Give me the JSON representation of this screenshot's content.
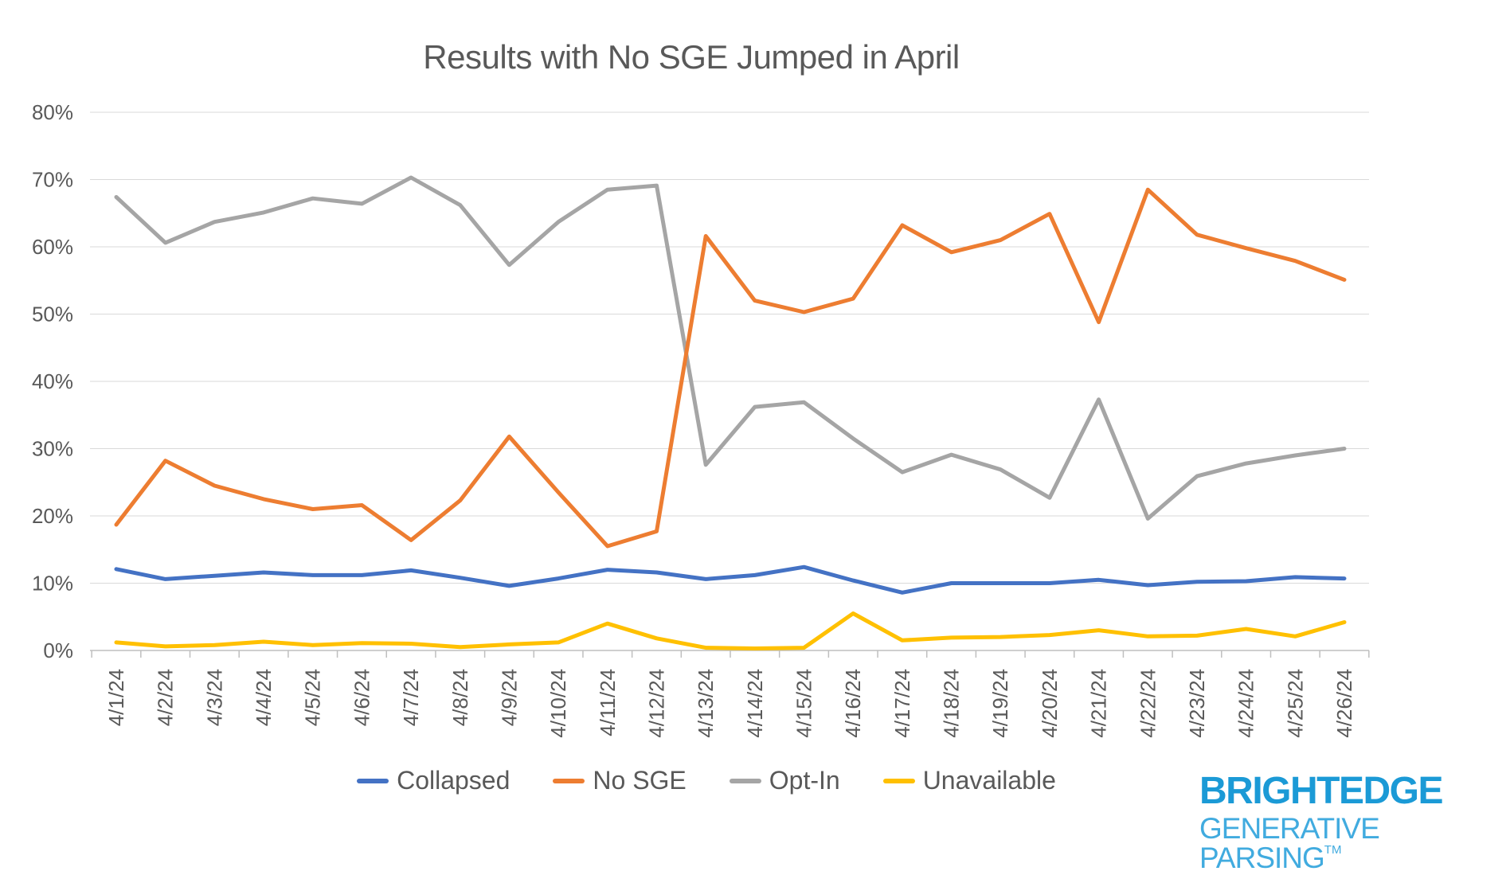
{
  "title": "Results with No SGE Jumped in April",
  "chart_data": {
    "type": "line",
    "title": "Results with No SGE Jumped in April",
    "xlabel": "",
    "ylabel": "",
    "ylim": [
      0,
      80
    ],
    "y_tick_step": 10,
    "y_tick_labels": [
      "0%",
      "10%",
      "20%",
      "30%",
      "40%",
      "50%",
      "60%",
      "70%",
      "80%"
    ],
    "grid": true,
    "legend_position": "bottom",
    "categories": [
      "4/1/24",
      "4/2/24",
      "4/3/24",
      "4/4/24",
      "4/5/24",
      "4/6/24",
      "4/7/24",
      "4/8/24",
      "4/9/24",
      "4/10/24",
      "4/11/24",
      "4/12/24",
      "4/13/24",
      "4/14/24",
      "4/15/24",
      "4/16/24",
      "4/17/24",
      "4/18/24",
      "4/19/24",
      "4/20/24",
      "4/21/24",
      "4/22/24",
      "4/23/24",
      "4/24/24",
      "4/25/24",
      "4/26/24"
    ],
    "series": [
      {
        "name": "Collapsed",
        "color": "#4472C4",
        "values": [
          12.1,
          10.6,
          11.1,
          11.6,
          11.2,
          11.2,
          11.9,
          10.8,
          9.6,
          10.7,
          12.0,
          11.6,
          10.6,
          11.2,
          12.4,
          10.4,
          8.6,
          10.0,
          10.0,
          10.0,
          10.5,
          9.7,
          10.2,
          10.3,
          10.9,
          10.7
        ]
      },
      {
        "name": "No SGE",
        "color": "#ED7D31",
        "values": [
          18.7,
          28.2,
          24.5,
          22.5,
          21.0,
          21.6,
          16.4,
          22.3,
          31.8,
          23.5,
          15.5,
          17.7,
          61.6,
          52.0,
          50.3,
          52.3,
          63.2,
          59.2,
          61.0,
          64.9,
          48.8,
          68.5,
          61.8,
          59.8,
          57.9,
          55.1
        ]
      },
      {
        "name": "Opt-In",
        "color": "#A5A5A5",
        "values": [
          67.4,
          60.6,
          63.7,
          65.1,
          67.2,
          66.4,
          70.3,
          66.2,
          57.3,
          63.7,
          68.5,
          69.1,
          27.6,
          36.2,
          36.9,
          31.5,
          26.5,
          29.1,
          26.9,
          22.7,
          37.3,
          19.6,
          25.9,
          27.8,
          29.0,
          30.0
        ]
      },
      {
        "name": "Unavailable",
        "color": "#FFC000",
        "values": [
          1.2,
          0.6,
          0.8,
          1.3,
          0.8,
          1.1,
          1.0,
          0.5,
          0.9,
          1.2,
          4.0,
          1.8,
          0.4,
          0.3,
          0.4,
          5.5,
          1.5,
          1.9,
          2.0,
          2.3,
          3.0,
          2.1,
          2.2,
          3.2,
          2.1,
          4.2
        ]
      }
    ]
  },
  "branding": {
    "line1": "BRIGHTEDGE",
    "line2": "GENERATIVE PARSING",
    "tm": "TM",
    "color1": "#1B9AD6",
    "color2": "#41ABDF"
  }
}
